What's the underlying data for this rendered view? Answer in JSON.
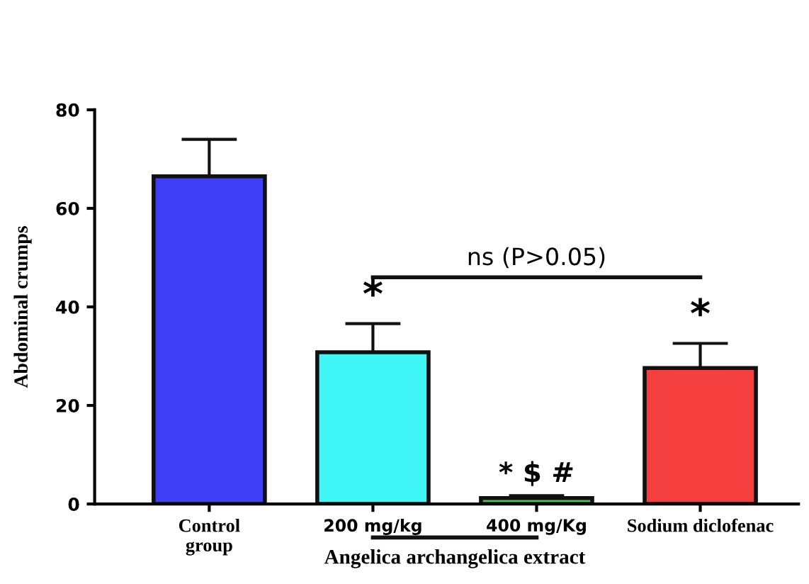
{
  "chart_data": {
    "type": "bar",
    "ylabel": "Abdominal crumps",
    "categories": [
      "Control\ngroup",
      "200 mg/kg",
      "400 mg/Kg",
      "Sodium diclofenac"
    ],
    "values": [
      66.5,
      30.8,
      1.2,
      27.6
    ],
    "errors": [
      [
        66.5,
        74
      ],
      [
        30.8,
        36.6
      ],
      [
        1.2,
        1.7
      ],
      [
        27.6,
        32.6
      ]
    ],
    "colors": [
      "#3f3ff5",
      "#3ff5f5",
      "#4cc44c",
      "#f53f3f"
    ],
    "ylim": [
      0,
      80
    ],
    "yticks": [
      0,
      20,
      40,
      60,
      80
    ],
    "grid": false,
    "legend": false,
    "annotations": [
      "*",
      "* $ #",
      "*",
      "ns (P>0.05)",
      "Angelica archangelica extract"
    ]
  }
}
